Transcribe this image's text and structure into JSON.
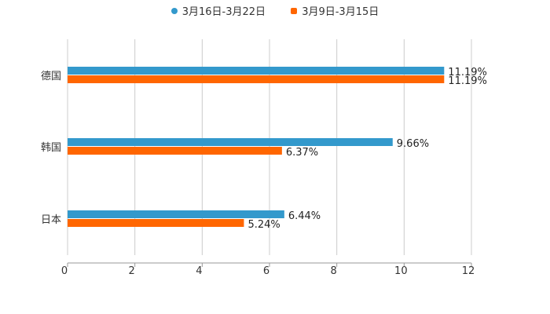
{
  "chart_data": {
    "type": "bar",
    "orientation": "horizontal",
    "categories": [
      "德国",
      "韩国",
      "日本"
    ],
    "series": [
      {
        "name": "3月16日-3月22日",
        "color": "#3399cc",
        "values": [
          11.19,
          9.66,
          6.44
        ],
        "labels": [
          "11.19%",
          "9.66%",
          "6.44%"
        ]
      },
      {
        "name": "3月9日-3月15日",
        "color": "#ff6600",
        "values": [
          11.19,
          6.37,
          5.24
        ],
        "labels": [
          "11.19%",
          "6.37%",
          "5.24%"
        ]
      }
    ],
    "xlim": [
      0,
      12
    ],
    "xticks": [
      0,
      2,
      4,
      6,
      8,
      10,
      12
    ],
    "grid": true,
    "legend": "top-center",
    "title": "",
    "xlabel": "",
    "ylabel": ""
  }
}
